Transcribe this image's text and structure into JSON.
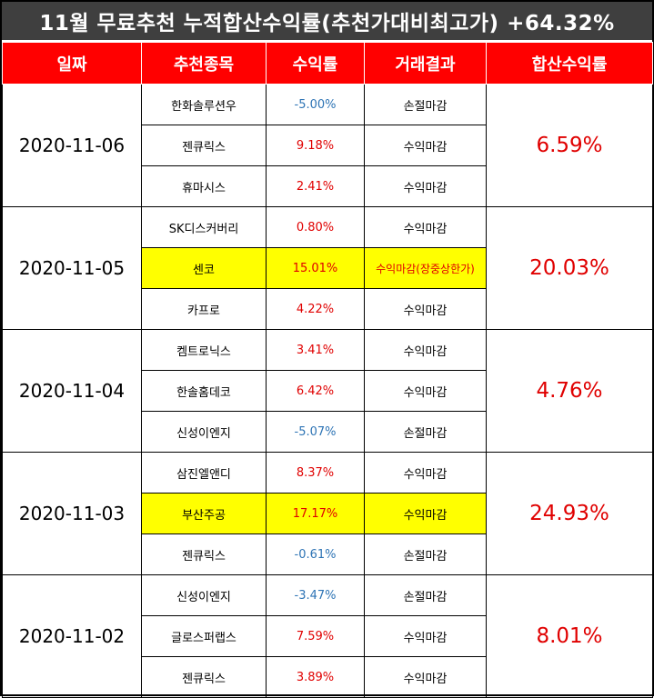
{
  "title": "11월 무료추천 누적합산수익률(추천가대비최고가) +64.32%",
  "headers": [
    "일짜",
    "추천종목",
    "수익률",
    "거래결과",
    "합산수익률"
  ],
  "groups": [
    {
      "date": "2020-11-06",
      "total": "6.59%",
      "rows": [
        {
          "stock": "한화솔루션우",
          "ret": "-5.00%",
          "result": "손절마감"
        },
        {
          "stock": "젠큐릭스",
          "ret": "9.18%",
          "result": "수익마감"
        },
        {
          "stock": "휴마시스",
          "ret": "2.41%",
          "result": "수익마감"
        }
      ]
    },
    {
      "date": "2020-11-05",
      "total": "20.03%",
      "rows": [
        {
          "stock": "SK디스커버리",
          "ret": "0.80%",
          "result": "수익마감"
        },
        {
          "stock": "센코",
          "ret": "15.01%",
          "result": "수익마감(장중상한가)"
        },
        {
          "stock": "카프로",
          "ret": "4.22%",
          "result": "수익마감"
        }
      ]
    },
    {
      "date": "2020-11-04",
      "total": "4.76%",
      "rows": [
        {
          "stock": "켐트로닉스",
          "ret": "3.41%",
          "result": "수익마감"
        },
        {
          "stock": "한솔홈데코",
          "ret": "6.42%",
          "result": "수익마감"
        },
        {
          "stock": "신성이엔지",
          "ret": "-5.07%",
          "result": "손절마감"
        }
      ]
    },
    {
      "date": "2020-11-03",
      "total": "24.93%",
      "rows": [
        {
          "stock": "삼진엘앤디",
          "ret": "8.37%",
          "result": "수익마감"
        },
        {
          "stock": "부산주공",
          "ret": "17.17%",
          "result": "수익마감"
        },
        {
          "stock": "젠큐릭스",
          "ret": "-0.61%",
          "result": "손절마감"
        }
      ]
    },
    {
      "date": "2020-11-02",
      "total": "8.01%",
      "rows": [
        {
          "stock": "신성이엔지",
          "ret": "-3.47%",
          "result": "손절마감"
        },
        {
          "stock": "글로스퍼랩스",
          "ret": "7.59%",
          "result": "수익마감"
        },
        {
          "stock": "젠큐릭스",
          "ret": "3.89%",
          "result": "수익마감"
        }
      ]
    }
  ],
  "colors": {
    "header_bg": "#ff0000",
    "title_bg": "#3f3f3f",
    "positive": "#e00000",
    "negative": "#2e74b5",
    "highlight": "#ffff00"
  }
}
